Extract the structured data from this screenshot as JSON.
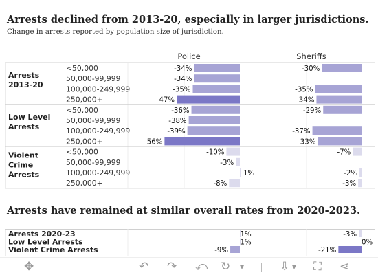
{
  "title": "Arrests declined from 2013-20, especially in larger jurisdictions.",
  "subtitle": "Change in arrests reported by population size of jurisdiction.",
  "title2": "Arrests have remained at similar overall rates from 2020-2023.",
  "colors": {
    "bar_light": "#a7a4d5",
    "bar_dark": "#7b77c6",
    "bar_faint": "#dcdbed",
    "border": "#d0d0d0"
  },
  "chart_data": [
    {
      "type": "bar",
      "title": "Arrests declined from 2013-20, especially in larger jurisdictions.",
      "subtitle": "Change in arrests reported by population size of jurisdiction.",
      "columns": [
        "Police",
        "Sheriffs"
      ],
      "value_format": "percent_change",
      "groups": [
        {
          "name": "Arrests 2013-20",
          "rows": [
            {
              "label": "<50,000",
              "police": -34,
              "sheriffs": -30
            },
            {
              "label": "50,000-99,999",
              "police": -34,
              "sheriffs": null
            },
            {
              "label": "100,000-249,999",
              "police": -35,
              "sheriffs": -35
            },
            {
              "label": "250,000+",
              "police": -47,
              "sheriffs": -34
            }
          ]
        },
        {
          "name": "Low Level Arrests",
          "rows": [
            {
              "label": "<50,000",
              "police": -36,
              "sheriffs": -29
            },
            {
              "label": "50,000-99,999",
              "police": -38,
              "sheriffs": null
            },
            {
              "label": "100,000-249,999",
              "police": -39,
              "sheriffs": -37
            },
            {
              "label": "250,000+",
              "police": -56,
              "sheriffs": -33
            }
          ]
        },
        {
          "name": "Violent Crime Arrests",
          "rows": [
            {
              "label": "<50,000",
              "police": -10,
              "sheriffs": -7
            },
            {
              "label": "50,000-99,999",
              "police": -3,
              "sheriffs": null
            },
            {
              "label": "100,000-249,999",
              "police": 1,
              "sheriffs": -2
            },
            {
              "label": "250,000+",
              "police": -8,
              "sheriffs": -3
            }
          ]
        }
      ]
    },
    {
      "type": "bar",
      "title": "Arrests have remained at similar overall rates from 2020-2023.",
      "value_format": "percent_change",
      "rows": [
        {
          "label": "Arrests 2020-23",
          "police": 1,
          "sheriffs": -3
        },
        {
          "label": "Low Level Arrests",
          "police": 1,
          "sheriffs": 0
        },
        {
          "label": "Violent Crime Arrests",
          "police": -9,
          "sheriffs": -21
        }
      ]
    }
  ],
  "toolbar": {
    "move_icon": "✥",
    "undo_icon": "↶",
    "redo_icon": "↷",
    "revert_icon": "⤺",
    "forward_icon": "↻",
    "dropdown_icon": "▾",
    "download_icon": "⇩",
    "fullscreen_icon": "⛶",
    "share_icon": "⋖"
  }
}
